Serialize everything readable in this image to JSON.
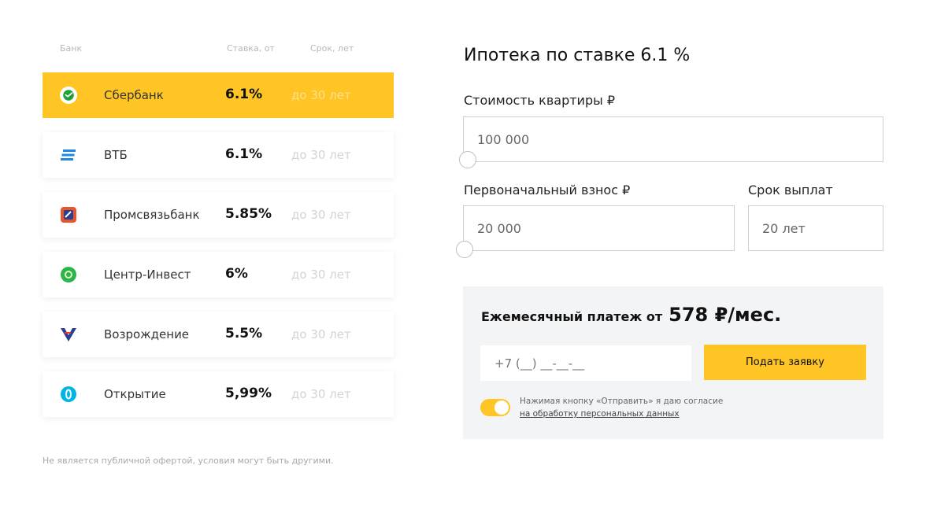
{
  "table": {
    "headers": {
      "bank": "Банк",
      "rate": "Ставка, от",
      "term": "Срок, лет"
    },
    "rows": [
      {
        "name": "Сбербанк",
        "rate": "6.1%",
        "term": "до 30 лет",
        "logo": "sberbank-logo",
        "color": "#21a038"
      },
      {
        "name": "ВТБ",
        "rate": "6.1%",
        "term": "до 30 лет",
        "logo": "vtb-logo",
        "color": "#1e88e5"
      },
      {
        "name": "Промсвязьбанк",
        "rate": "5.85%",
        "term": "до 30 лет",
        "logo": "psb-logo",
        "color": "#e8552b"
      },
      {
        "name": "Центр-Инвест",
        "rate": "6%",
        "term": "до 30 лет",
        "logo": "centr-invest-logo",
        "color": "#2db34a"
      },
      {
        "name": "Возрождение",
        "rate": "5.5%",
        "term": "до 30 лет",
        "logo": "vozrozhdenie-logo",
        "color": "#2a3f8f"
      },
      {
        "name": "Открытие",
        "rate": "5,99%",
        "term": "до 30 лет",
        "logo": "otkrytie-logo",
        "color": "#00b4e6"
      }
    ]
  },
  "disclaimer": "Не является публичной офертой, условия могут быть другими.",
  "calculator": {
    "title": "Ипотека по ставке 6.1 %",
    "price_label": "Стоимость квартиры ₽",
    "price_value": "100 000",
    "down_label": "Первоначальный взнос ₽",
    "down_value": "20 000",
    "term_label": "Срок выплат",
    "term_value": "20 лет"
  },
  "payment": {
    "label": "Ежемесячный платеж от",
    "value": "578 ₽/мес.",
    "phone_placeholder": "+7 (__) __-__-__",
    "submit_label": "Подать заявку",
    "consent_text": "Нажимая кнопку «Отправить» я даю согласие",
    "consent_link": "на обработку персональных данных"
  },
  "colors": {
    "accent": "#ffc525",
    "panel": "#f3f4f6"
  }
}
